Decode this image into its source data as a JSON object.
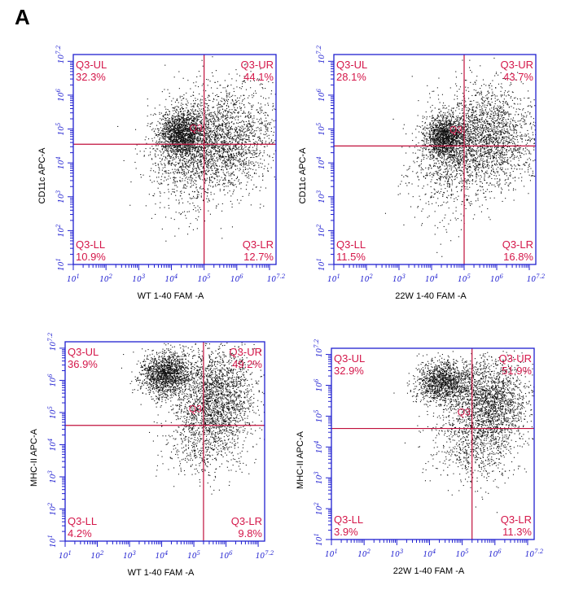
{
  "figure": {
    "panel_letter": "A"
  },
  "chart_data": [
    {
      "type": "scatter",
      "xlabel": "WT 1-40 FAM -A",
      "ylabel": "CD11c APC-A",
      "xlim": [
        1,
        7.2
      ],
      "ylim": [
        1,
        7.2
      ],
      "xscale": "log",
      "yscale": "log",
      "xticks": [
        "10^1",
        "10^2",
        "10^3",
        "10^4",
        "10^5",
        "10^6",
        "10^7.2"
      ],
      "yticks": [
        "10^1",
        "10^2",
        "10^3",
        "10^4",
        "10^5",
        "10^6",
        "10^7.2"
      ],
      "gate": {
        "name": "Q3",
        "x": 5.0,
        "y": 4.55
      },
      "quadrants": {
        "UL": {
          "label": "Q3-UL",
          "value": "32.3%"
        },
        "UR": {
          "label": "Q3-UR",
          "value": "44.1%"
        },
        "LL": {
          "label": "Q3-LL",
          "value": "10.9%"
        },
        "LR": {
          "label": "Q3-LR",
          "value": "12.7%"
        }
      },
      "clusters": [
        {
          "cx": 4.3,
          "cy": 4.85,
          "sx": 0.35,
          "sy": 0.35,
          "n": 1600
        },
        {
          "cx": 5.5,
          "cy": 4.7,
          "sx": 0.85,
          "sy": 0.75,
          "n": 2400
        },
        {
          "cx": 4.4,
          "cy": 3.8,
          "sx": 0.6,
          "sy": 0.8,
          "n": 500
        }
      ]
    },
    {
      "type": "scatter",
      "xlabel": "22W 1-40 FAM -A",
      "ylabel": "CD11c APC-A",
      "xlim": [
        1,
        7.2
      ],
      "ylim": [
        1,
        7.2
      ],
      "xscale": "log",
      "yscale": "log",
      "xticks": [
        "10^1",
        "10^2",
        "10^3",
        "10^4",
        "10^5",
        "10^6",
        "10^7.2"
      ],
      "yticks": [
        "10^1",
        "10^2",
        "10^3",
        "10^4",
        "10^5",
        "10^6",
        "10^7.2"
      ],
      "gate": {
        "name": "Q3",
        "x": 5.0,
        "y": 4.5
      },
      "quadrants": {
        "UL": {
          "label": "Q3-UL",
          "value": "28.1%"
        },
        "UR": {
          "label": "Q3-UR",
          "value": "43.7%"
        },
        "LL": {
          "label": "Q3-LL",
          "value": "11.5%"
        },
        "LR": {
          "label": "Q3-LR",
          "value": "16.8%"
        }
      },
      "clusters": [
        {
          "cx": 4.4,
          "cy": 4.75,
          "sx": 0.3,
          "sy": 0.3,
          "n": 1300
        },
        {
          "cx": 5.6,
          "cy": 4.7,
          "sx": 0.8,
          "sy": 0.75,
          "n": 2400
        },
        {
          "cx": 4.4,
          "cy": 3.8,
          "sx": 0.6,
          "sy": 0.8,
          "n": 500
        }
      ]
    },
    {
      "type": "scatter",
      "xlabel": "WT 1-40 FAM -A",
      "ylabel": "MHC-II APC-A",
      "xlim": [
        1,
        7.2
      ],
      "ylim": [
        1,
        7.2
      ],
      "xscale": "log",
      "yscale": "log",
      "xticks": [
        "10^1",
        "10^2",
        "10^3",
        "10^4",
        "10^5",
        "10^6",
        "10^7.2"
      ],
      "yticks": [
        "10^1",
        "10^2",
        "10^3",
        "10^4",
        "10^5",
        "10^6",
        "10^7.2"
      ],
      "gate": {
        "name": "Q3",
        "x": 5.3,
        "y": 4.6
      },
      "quadrants": {
        "UL": {
          "label": "Q3-UL",
          "value": "36.9%"
        },
        "UR": {
          "label": "Q3-UR",
          "value": "49.2%"
        },
        "LL": {
          "label": "Q3-LL",
          "value": "4.2%"
        },
        "LR": {
          "label": "Q3-LR",
          "value": "9.8%"
        }
      },
      "clusters": [
        {
          "cx": 4.1,
          "cy": 6.2,
          "sx": 0.4,
          "sy": 0.35,
          "n": 1500
        },
        {
          "cx": 5.7,
          "cy": 5.6,
          "sx": 0.6,
          "sy": 0.75,
          "n": 1900
        },
        {
          "cx": 5.3,
          "cy": 4.3,
          "sx": 0.65,
          "sy": 0.7,
          "n": 700
        }
      ]
    },
    {
      "type": "scatter",
      "xlabel": "22W 1-40 FAM -A",
      "ylabel": "MHC-II APC-A",
      "xlim": [
        1,
        7.2
      ],
      "ylim": [
        1,
        7.2
      ],
      "xscale": "log",
      "yscale": "log",
      "xticks": [
        "10^1",
        "10^2",
        "10^3",
        "10^4",
        "10^5",
        "10^6",
        "10^7.2"
      ],
      "yticks": [
        "10^1",
        "10^2",
        "10^3",
        "10^4",
        "10^5",
        "10^6",
        "10^7.2"
      ],
      "gate": {
        "name": "Q3",
        "x": 5.3,
        "y": 4.6
      },
      "quadrants": {
        "UL": {
          "label": "Q3-UL",
          "value": "32.9%"
        },
        "UR": {
          "label": "Q3-UR",
          "value": "51.9%"
        },
        "LL": {
          "label": "Q3-LL",
          "value": "3.9%"
        },
        "LR": {
          "label": "Q3-LR",
          "value": "11.3%"
        }
      },
      "clusters": [
        {
          "cx": 4.4,
          "cy": 6.1,
          "sx": 0.4,
          "sy": 0.35,
          "n": 1300
        },
        {
          "cx": 5.8,
          "cy": 5.5,
          "sx": 0.6,
          "sy": 0.75,
          "n": 1900
        },
        {
          "cx": 5.4,
          "cy": 4.2,
          "sx": 0.65,
          "sy": 0.7,
          "n": 700
        }
      ]
    }
  ]
}
